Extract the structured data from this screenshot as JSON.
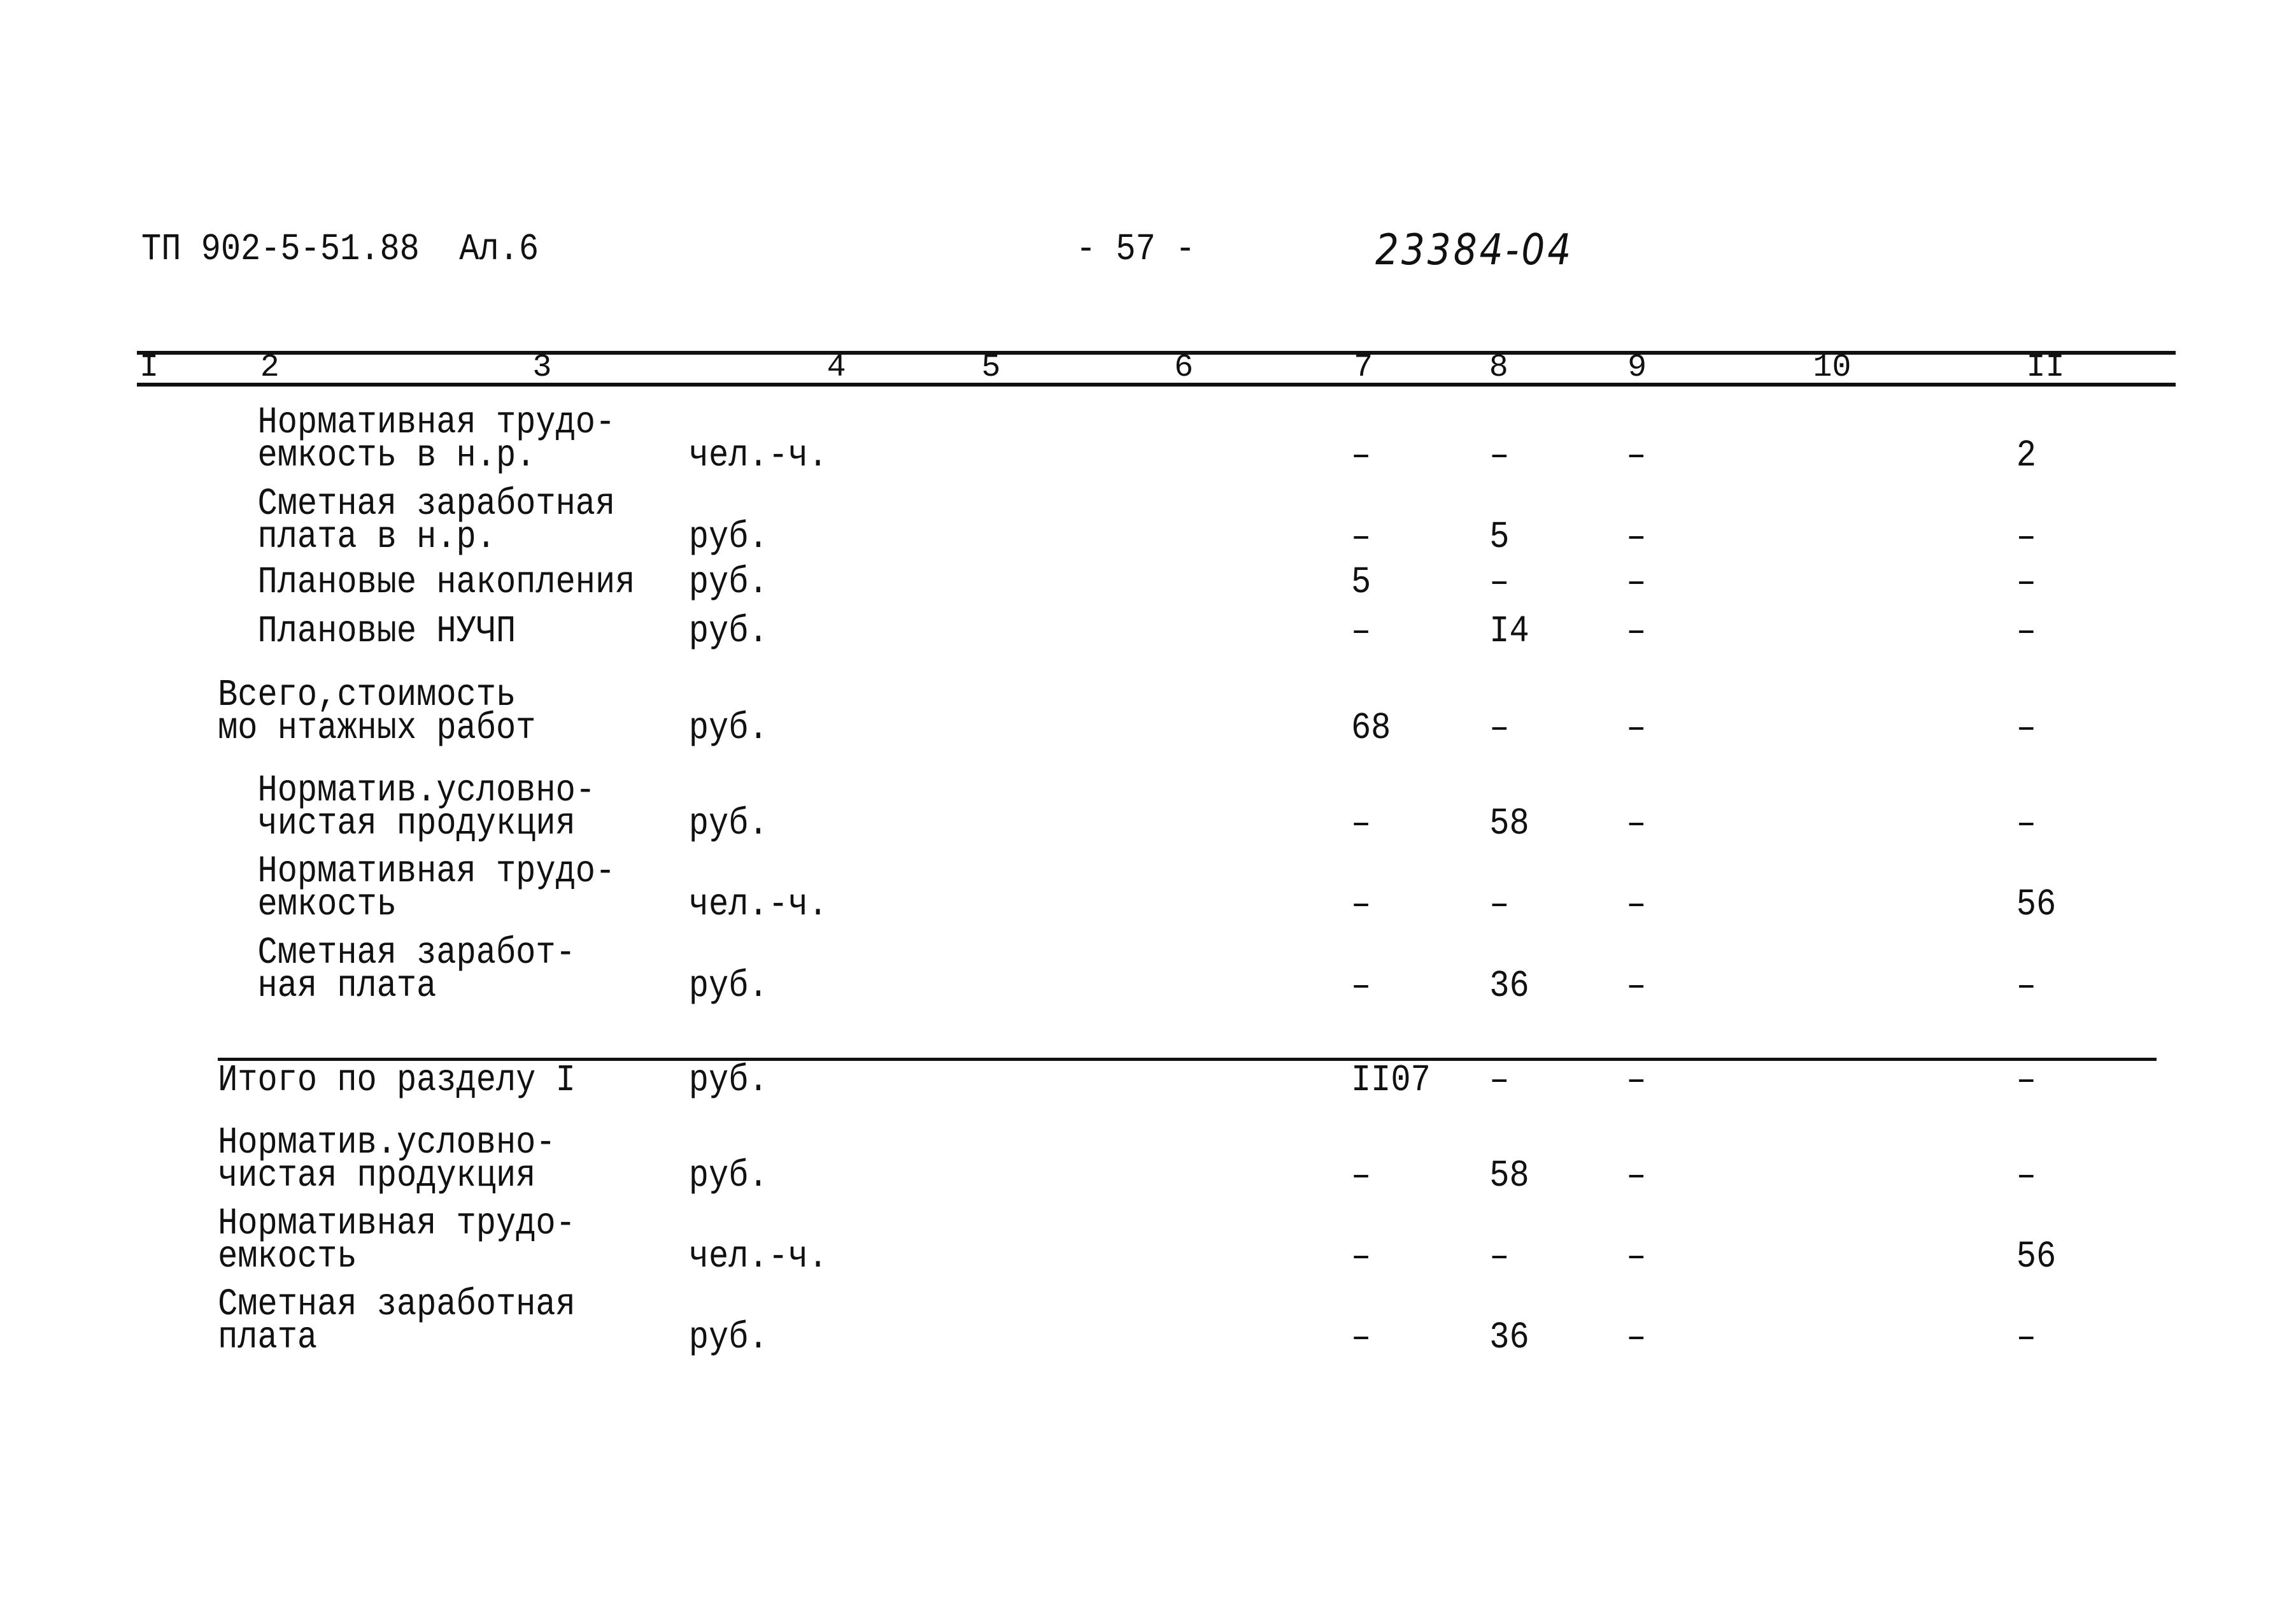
{
  "header": {
    "doc_code": "ТП 902-5-51.88  Ал.6",
    "page_number": "- 57 -",
    "handwritten_number": "23384-04"
  },
  "table": {
    "column_numbers": [
      "I",
      "2",
      "3",
      "4",
      "5",
      "6",
      "7",
      "8",
      "9",
      "10",
      "II"
    ],
    "rows": [
      {
        "label": [
          "Нормативная трудо-",
          "емкость в н.р."
        ],
        "unit": "чел.-ч.",
        "c7": "–",
        "c8": "–",
        "c9": "–",
        "c11": "2"
      },
      {
        "label": [
          "Сметная заработная",
          "плата в н.р."
        ],
        "unit": "руб.",
        "c7": "–",
        "c8": "5",
        "c9": "–",
        "c11": "–"
      },
      {
        "label": [
          "Плановые накопления"
        ],
        "unit": "руб.",
        "c7": "5",
        "c8": "–",
        "c9": "–",
        "c11": "–"
      },
      {
        "label": [
          "Плановые НУЧП"
        ],
        "unit": "руб.",
        "c7": "–",
        "c8": "I4",
        "c9": "–",
        "c11": "–"
      },
      {
        "label": [
          "Всего,стоимость",
          "мо нтажных работ"
        ],
        "unit": "руб.",
        "c7": "68",
        "c8": "–",
        "c9": "–",
        "c11": "–"
      },
      {
        "label": [
          "Норматив.условно-",
          "чистая продукция"
        ],
        "unit": "руб.",
        "c7": "–",
        "c8": "58",
        "c9": "–",
        "c11": "–"
      },
      {
        "label": [
          "Нормативная трудо-",
          "емкость"
        ],
        "unit": "чел.-ч.",
        "c7": "–",
        "c8": "–",
        "c9": "–",
        "c11": "56"
      },
      {
        "label": [
          "Сметная заработ-",
          "ная плата"
        ],
        "unit": "руб.",
        "c7": "–",
        "c8": "36",
        "c9": "–",
        "c11": "–"
      },
      {
        "label": [
          "Итого по разделу I"
        ],
        "unit": "руб.",
        "c7": "II07",
        "c8": "–",
        "c9": "–",
        "c11": "–"
      },
      {
        "label": [
          "Норматив.условно-",
          "чистая продукция"
        ],
        "unit": "руб.",
        "c7": "–",
        "c8": "58",
        "c9": "–",
        "c11": "–"
      },
      {
        "label": [
          "Нормативная трудо-",
          "емкость"
        ],
        "unit": "чел.-ч.",
        "c7": "–",
        "c8": "–",
        "c9": "–",
        "c11": "56"
      },
      {
        "label": [
          "Сметная заработная",
          "плата"
        ],
        "unit": "руб.",
        "c7": "–",
        "c8": "36",
        "c9": "–",
        "c11": "–"
      }
    ]
  }
}
